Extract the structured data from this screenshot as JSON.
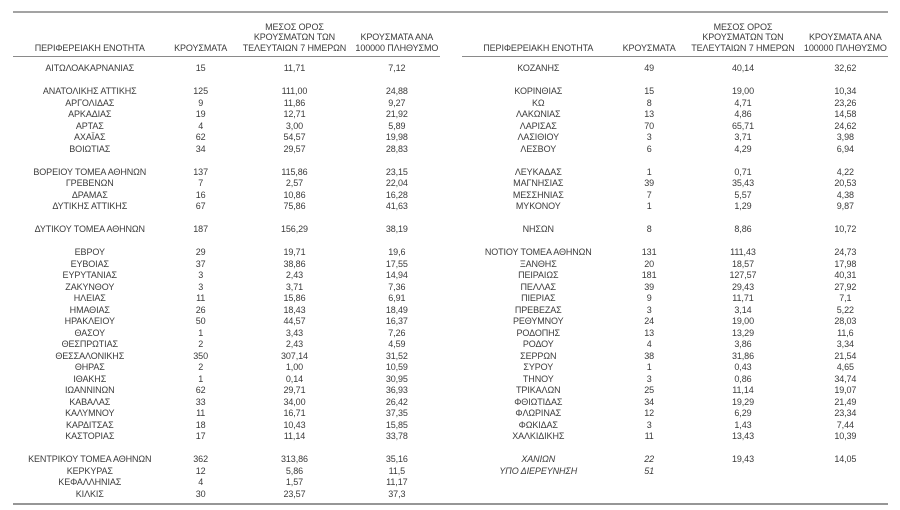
{
  "table": {
    "headers": {
      "region": "ΠΕΡΙΦΕΡΕΙΑΚΗ ΕΝΟΤΗΤΑ",
      "cases": "ΚΡΟΥΣΜΑΤΑ",
      "avg7": "ΜΕΣΟΣ ΟΡΟΣ ΚΡΟΥΣΜΑΤΩΝ ΤΩΝ ΤΕΛΕΥΤΑΙΩΝ 7 ΗΜΕΡΩΝ",
      "per100k": "ΚΡΟΥΣΜΑΤΑ ΑΝΑ 100000 ΠΛΗΘΥΣΜΟ"
    },
    "left_rows": [
      {
        "region": "ΑΙΤΩΛΟΑΚΑΡΝΑΝΙΑΣ",
        "cases": "15",
        "avg7": "11,71",
        "per100k": "7,12"
      },
      null,
      {
        "region": "ΑΝΑΤΟΛΙΚΗΣ ΑΤΤΙΚΗΣ",
        "cases": "125",
        "avg7": "111,00",
        "per100k": "24,88"
      },
      {
        "region": "ΑΡΓΟΛΙΔΑΣ",
        "cases": "9",
        "avg7": "11,86",
        "per100k": "9,27"
      },
      {
        "region": "ΑΡΚΑΔΙΑΣ",
        "cases": "19",
        "avg7": "12,71",
        "per100k": "21,92"
      },
      {
        "region": "ΑΡΤΑΣ",
        "cases": "4",
        "avg7": "3,00",
        "per100k": "5,89"
      },
      {
        "region": "ΑΧΑΪΑΣ",
        "cases": "62",
        "avg7": "54,57",
        "per100k": "19,98"
      },
      {
        "region": "ΒΟΙΩΤΙΑΣ",
        "cases": "34",
        "avg7": "29,57",
        "per100k": "28,83"
      },
      null,
      {
        "region": "ΒΟΡΕΙΟΥ ΤΟΜΕΑ ΑΘΗΝΩΝ",
        "cases": "137",
        "avg7": "115,86",
        "per100k": "23,15"
      },
      {
        "region": "ΓΡΕΒΕΝΩΝ",
        "cases": "7",
        "avg7": "2,57",
        "per100k": "22,04"
      },
      {
        "region": "ΔΡΑΜΑΣ",
        "cases": "16",
        "avg7": "10,86",
        "per100k": "16,28"
      },
      {
        "region": "ΔΥΤΙΚΗΣ ΑΤΤΙΚΗΣ",
        "cases": "67",
        "avg7": "75,86",
        "per100k": "41,63"
      },
      null,
      {
        "region": "ΔΥΤΙΚΟΥ ΤΟΜΕΑ ΑΘΗΝΩΝ",
        "cases": "187",
        "avg7": "156,29",
        "per100k": "38,19"
      },
      null,
      {
        "region": "ΕΒΡΟΥ",
        "cases": "29",
        "avg7": "19,71",
        "per100k": "19,6"
      },
      {
        "region": "ΕΥΒΟΙΑΣ",
        "cases": "37",
        "avg7": "38,86",
        "per100k": "17,55"
      },
      {
        "region": "ΕΥΡΥΤΑΝΙΑΣ",
        "cases": "3",
        "avg7": "2,43",
        "per100k": "14,94"
      },
      {
        "region": "ΖΑΚΥΝΘΟΥ",
        "cases": "3",
        "avg7": "3,71",
        "per100k": "7,36"
      },
      {
        "region": "ΗΛΕΙΑΣ",
        "cases": "11",
        "avg7": "15,86",
        "per100k": "6,91"
      },
      {
        "region": "ΗΜΑΘΙΑΣ",
        "cases": "26",
        "avg7": "18,43",
        "per100k": "18,49"
      },
      {
        "region": "ΗΡΑΚΛΕΙΟΥ",
        "cases": "50",
        "avg7": "44,57",
        "per100k": "16,37"
      },
      {
        "region": "ΘΑΣΟΥ",
        "cases": "1",
        "avg7": "3,43",
        "per100k": "7,26"
      },
      {
        "region": "ΘΕΣΠΡΩΤΙΑΣ",
        "cases": "2",
        "avg7": "2,43",
        "per100k": "4,59"
      },
      {
        "region": "ΘΕΣΣΑΛΟΝΙΚΗΣ",
        "cases": "350",
        "avg7": "307,14",
        "per100k": "31,52"
      },
      {
        "region": "ΘΗΡΑΣ",
        "cases": "2",
        "avg7": "1,00",
        "per100k": "10,59"
      },
      {
        "region": "ΙΘΑΚΗΣ",
        "cases": "1",
        "avg7": "0,14",
        "per100k": "30,95"
      },
      {
        "region": "ΙΩΑΝΝΙΝΩΝ",
        "cases": "62",
        "avg7": "29,71",
        "per100k": "36,93"
      },
      {
        "region": "ΚΑΒΑΛΑΣ",
        "cases": "33",
        "avg7": "34,00",
        "per100k": "26,42"
      },
      {
        "region": "ΚΑΛΥΜΝΟΥ",
        "cases": "11",
        "avg7": "16,71",
        "per100k": "37,35"
      },
      {
        "region": "ΚΑΡΔΙΤΣΑΣ",
        "cases": "18",
        "avg7": "10,43",
        "per100k": "15,85"
      },
      {
        "region": "ΚΑΣΤΟΡΙΑΣ",
        "cases": "17",
        "avg7": "11,14",
        "per100k": "33,78"
      },
      null,
      {
        "region": "ΚΕΝΤΡΙΚΟΥ ΤΟΜΕΑ ΑΘΗΝΩΝ",
        "cases": "362",
        "avg7": "313,86",
        "per100k": "35,16"
      },
      {
        "region": "ΚΕΡΚΥΡΑΣ",
        "cases": "12",
        "avg7": "5,86",
        "per100k": "11,5"
      },
      {
        "region": "ΚΕΦΑΛΛΗΝΙΑΣ",
        "cases": "4",
        "avg7": "1,57",
        "per100k": "11,17"
      },
      {
        "region": "ΚΙΛΚΙΣ",
        "cases": "30",
        "avg7": "23,57",
        "per100k": "37,3"
      }
    ],
    "right_rows": [
      {
        "region": "ΚΟΖΑΝΗΣ",
        "cases": "49",
        "avg7": "40,14",
        "per100k": "32,62"
      },
      null,
      {
        "region": "ΚΟΡΙΝΘΙΑΣ",
        "cases": "15",
        "avg7": "19,00",
        "per100k": "10,34"
      },
      {
        "region": "ΚΩ",
        "cases": "8",
        "avg7": "4,71",
        "per100k": "23,26"
      },
      {
        "region": "ΛΑΚΩΝΙΑΣ",
        "cases": "13",
        "avg7": "4,86",
        "per100k": "14,58"
      },
      {
        "region": "ΛΑΡΙΣΑΣ",
        "cases": "70",
        "avg7": "65,71",
        "per100k": "24,62"
      },
      {
        "region": "ΛΑΣΙΘΙΟΥ",
        "cases": "3",
        "avg7": "3,71",
        "per100k": "3,98"
      },
      {
        "region": "ΛΕΣΒΟΥ",
        "cases": "6",
        "avg7": "4,29",
        "per100k": "6,94"
      },
      null,
      {
        "region": "ΛΕΥΚΑΔΑΣ",
        "cases": "1",
        "avg7": "0,71",
        "per100k": "4,22"
      },
      {
        "region": "ΜΑΓΝΗΣΙΑΣ",
        "cases": "39",
        "avg7": "35,43",
        "per100k": "20,53"
      },
      {
        "region": "ΜΕΣΣΗΝΙΑΣ",
        "cases": "7",
        "avg7": "5,57",
        "per100k": "4,38"
      },
      {
        "region": "ΜΥΚΟΝΟΥ",
        "cases": "1",
        "avg7": "1,29",
        "per100k": "9,87"
      },
      null,
      {
        "region": "ΝΗΣΩΝ",
        "cases": "8",
        "avg7": "8,86",
        "per100k": "10,72"
      },
      null,
      {
        "region": "ΝΟΤΙΟΥ ΤΟΜΕΑ ΑΘΗΝΩΝ",
        "cases": "131",
        "avg7": "111,43",
        "per100k": "24,73"
      },
      {
        "region": "ΞΑΝΘΗΣ",
        "cases": "20",
        "avg7": "18,57",
        "per100k": "17,98"
      },
      {
        "region": "ΠΕΙΡΑΙΩΣ",
        "cases": "181",
        "avg7": "127,57",
        "per100k": "40,31"
      },
      {
        "region": "ΠΕΛΛΑΣ",
        "cases": "39",
        "avg7": "29,43",
        "per100k": "27,92"
      },
      {
        "region": "ΠΙΕΡΙΑΣ",
        "cases": "9",
        "avg7": "11,71",
        "per100k": "7,1"
      },
      {
        "region": "ΠΡΕΒΕΖΑΣ",
        "cases": "3",
        "avg7": "3,14",
        "per100k": "5,22"
      },
      {
        "region": "ΡΕΘΥΜΝΟΥ",
        "cases": "24",
        "avg7": "19,00",
        "per100k": "28,03"
      },
      {
        "region": "ΡΟΔΟΠΗΣ",
        "cases": "13",
        "avg7": "13,29",
        "per100k": "11,6"
      },
      {
        "region": "ΡΟΔΟΥ",
        "cases": "4",
        "avg7": "3,86",
        "per100k": "3,34"
      },
      {
        "region": "ΣΕΡΡΩΝ",
        "cases": "38",
        "avg7": "31,86",
        "per100k": "21,54"
      },
      {
        "region": "ΣΥΡΟΥ",
        "cases": "1",
        "avg7": "0,43",
        "per100k": "4,65"
      },
      {
        "region": "ΤΗΝΟΥ",
        "cases": "3",
        "avg7": "0,86",
        "per100k": "34,74"
      },
      {
        "region": "ΤΡΙΚΑΛΩΝ",
        "cases": "25",
        "avg7": "11,14",
        "per100k": "19,07"
      },
      {
        "region": "ΦΘΙΩΤΙΔΑΣ",
        "cases": "34",
        "avg7": "19,29",
        "per100k": "21,49"
      },
      {
        "region": "ΦΛΩΡΙΝΑΣ",
        "cases": "12",
        "avg7": "6,29",
        "per100k": "23,34"
      },
      {
        "region": "ΦΩΚΙΔΑΣ",
        "cases": "3",
        "avg7": "1,43",
        "per100k": "7,44"
      },
      {
        "region": "ΧΑΛΚΙΔΙΚΗΣ",
        "cases": "11",
        "avg7": "13,43",
        "per100k": "10,39"
      },
      null,
      {
        "region": "ΧΑΝΙΩΝ",
        "cases": "22",
        "avg7": "19,43",
        "per100k": "14,05",
        "italic": true
      },
      {
        "region": "ΥΠΟ ΔΙΕΡΕΥΝΗΣΗ",
        "cases": "51",
        "avg7": "",
        "per100k": "",
        "italic": true
      },
      null,
      null
    ]
  }
}
